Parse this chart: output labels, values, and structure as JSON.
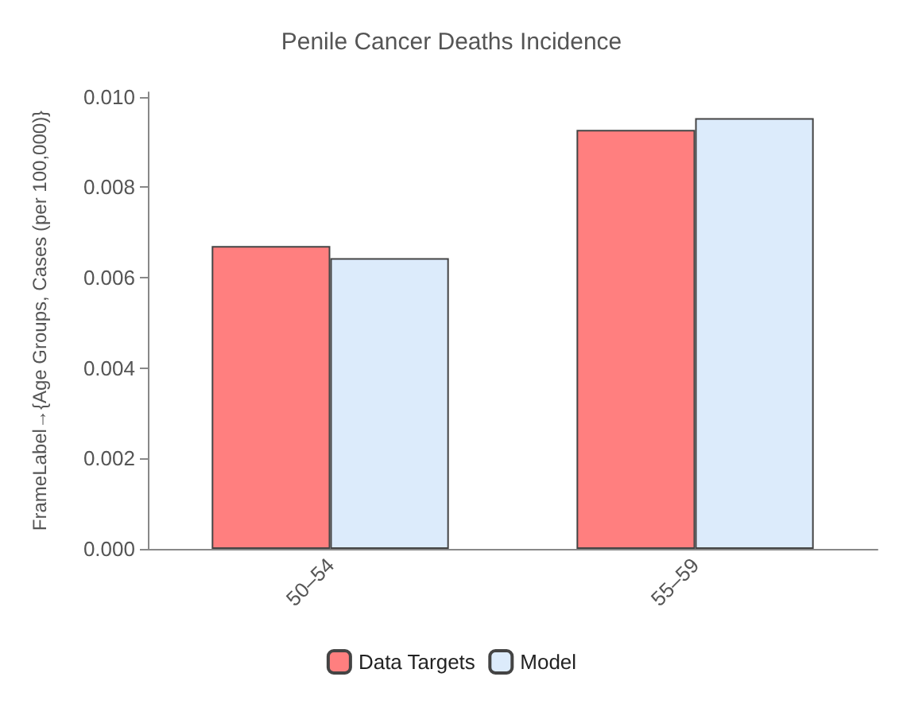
{
  "chart_data": {
    "type": "bar",
    "title": "Penile Cancer Deaths Incidence",
    "ylabel": "FrameLabel→{Age Groups, Cases (per 100,000)}",
    "categories": [
      "50–54",
      "55–59"
    ],
    "series": [
      {
        "name": "Data Targets",
        "color": "#ff7f7f",
        "values": [
          0.0067,
          0.00927
        ]
      },
      {
        "name": "Model",
        "color": "#dcebfb",
        "values": [
          0.00643,
          0.00953
        ]
      }
    ],
    "ylim": [
      0,
      0.0101
    ],
    "yticks": [
      {
        "value": 0,
        "label": "0.000"
      },
      {
        "value": 0.002,
        "label": "0.002"
      },
      {
        "value": 0.004,
        "label": "0.004"
      },
      {
        "value": 0.006,
        "label": "0.006"
      },
      {
        "value": 0.008,
        "label": "0.008"
      },
      {
        "value": 0.01,
        "label": "0.010"
      }
    ],
    "grid": false,
    "legend": "bottom"
  }
}
